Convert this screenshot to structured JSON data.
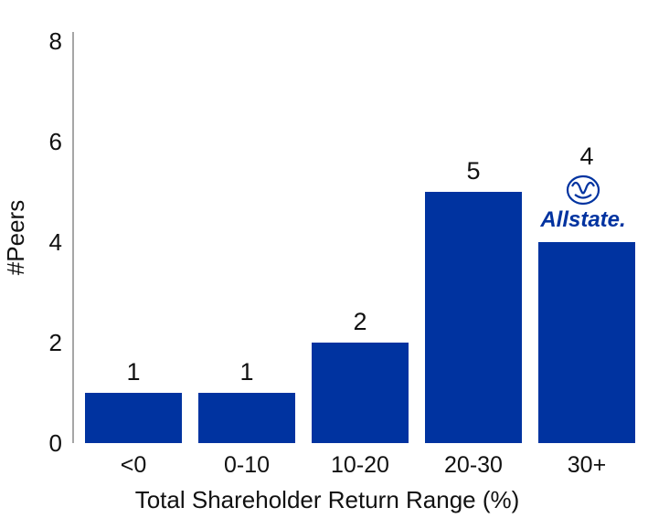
{
  "chart_data": {
    "type": "bar",
    "categories": [
      "<0",
      "0-10",
      "10-20",
      "20-30",
      "30+"
    ],
    "values": [
      1,
      1,
      2,
      5,
      4
    ],
    "data_labels": [
      "1",
      "1",
      "2",
      "5",
      "4"
    ],
    "xlabel": "Total Shareholder Return Range (%)",
    "ylabel": "#Peers",
    "ylim": [
      0,
      8
    ],
    "yticks": [
      "0",
      "2",
      "4",
      "6",
      "8"
    ],
    "bar_color": "#0033A0",
    "grid": false,
    "logo_text": "Allstate.",
    "logo_above_category": "30+"
  }
}
